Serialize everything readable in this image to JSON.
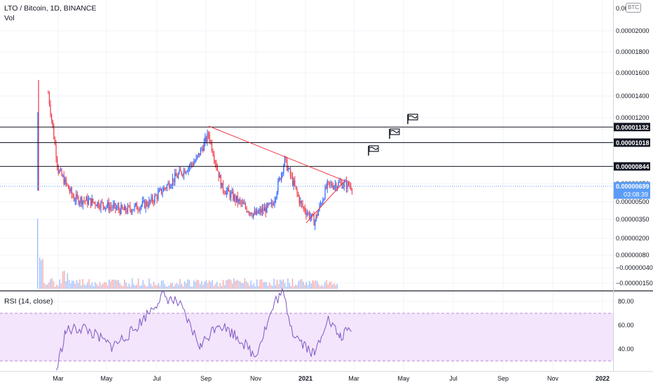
{
  "header": {
    "symbol_line": "LTO / Bitcoin, 1D, BINANCE",
    "volume_label": "Vol",
    "currency_badge": "BTC"
  },
  "rsi": {
    "label": "RSI (14, close)",
    "ticks": [
      "80.00",
      "60.00",
      "40.00"
    ],
    "upper_band": 70,
    "lower_band": 30
  },
  "price_axis": {
    "ticks": [
      "0.00002000",
      "0.00001800",
      "0.00001600",
      "0.00001400",
      "0.00001200",
      "0.00000650",
      "0.00000500",
      "0.00000350",
      "0.00000200",
      "0.00000080",
      "−0.00000040",
      "−0.00000150"
    ],
    "top_tick_partial": "0.00",
    "highlighted_levels": [
      "0.00001132",
      "0.00001018",
      "0.00000844"
    ],
    "last_price": "0.00000699",
    "countdown": "03:08:39"
  },
  "time_axis": {
    "labels": [
      "Mar",
      "May",
      "Jul",
      "Sep",
      "Nov",
      "2021",
      "Mar",
      "May",
      "Jul",
      "Sep",
      "Nov",
      "2022"
    ]
  },
  "colors": {
    "up": "#2962ff",
    "down": "#f23645",
    "trendline": "#f23645",
    "rsi_line": "#7e57c2",
    "rsi_band_fill": "#f3e5fc",
    "level_line": "#131722",
    "last_price_badge": "#5b9cf6"
  },
  "icons": [
    "flag-icon",
    "flag-icon",
    "flag-icon"
  ],
  "chart_data": {
    "type": "candlestick",
    "pair": "LTO / Bitcoin",
    "interval": "1D",
    "exchange": "BINANCE",
    "x": [
      "2020-02-18",
      "2020-03-01",
      "2020-03-20",
      "2020-04-15",
      "2020-05-20",
      "2020-06-20",
      "2020-07-20",
      "2020-08-15",
      "2020-08-30",
      "2020-09-15",
      "2020-10-10",
      "2020-10-25",
      "2020-11-15",
      "2020-11-30",
      "2020-12-20",
      "2021-01-05",
      "2021-01-20",
      "2021-02-05",
      "2021-02-20"
    ],
    "close": [
      1380,
      820,
      610,
      580,
      520,
      580,
      760,
      890,
      1080,
      690,
      560,
      490,
      560,
      890,
      560,
      440,
      700,
      720,
      700
    ],
    "close_units": "satoshi (1e-8 BTC)",
    "horizontal_levels": [
      1.132e-05,
      1.018e-05,
      8.44e-06
    ],
    "last_price": 6.99e-06,
    "rsi_14": {
      "x": [
        "2020-02-28",
        "2020-03-10",
        "2020-04-01",
        "2020-05-05",
        "2020-06-01",
        "2020-07-05",
        "2020-07-25",
        "2020-08-20",
        "2020-09-10",
        "2020-10-05",
        "2020-10-25",
        "2020-11-20",
        "2020-11-28",
        "2020-12-10",
        "2021-01-05",
        "2021-01-20",
        "2021-02-05",
        "2021-02-20"
      ],
      "values": [
        22,
        55,
        58,
        42,
        56,
        85,
        78,
        42,
        62,
        50,
        34,
        82,
        87,
        54,
        35,
        66,
        50,
        58
      ]
    }
  }
}
